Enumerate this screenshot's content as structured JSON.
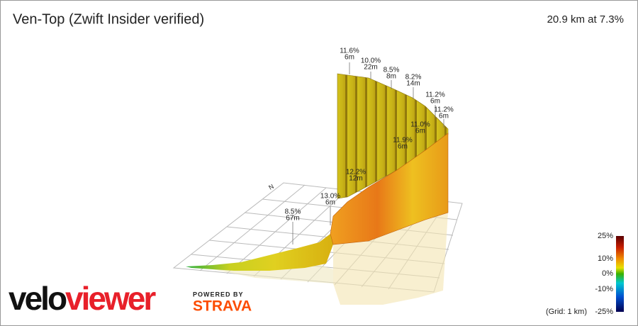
{
  "header": {
    "title": "Ven-Top (Zwift Insider verified)",
    "summary": "20.9 km at 7.3%"
  },
  "annotations": [
    {
      "gradient": "11.6%",
      "length": "6m"
    },
    {
      "gradient": "10.0%",
      "length": "22m"
    },
    {
      "gradient": "8.5%",
      "length": "8m"
    },
    {
      "gradient": "8.2%",
      "length": "14m"
    },
    {
      "gradient": "11.2%",
      "length": "6m"
    },
    {
      "gradient": "11.2%",
      "length": "6m"
    },
    {
      "gradient": "11.0%",
      "length": "6m"
    },
    {
      "gradient": "11.9%",
      "length": "6m"
    },
    {
      "gradient": "12.2%",
      "length": "12m"
    },
    {
      "gradient": "13.0%",
      "length": "6m"
    },
    {
      "gradient": "8.5%",
      "length": "67m"
    }
  ],
  "compass": "N",
  "color_scale": {
    "labels": [
      "25%",
      "10%",
      "0%",
      "-10%",
      "-25%"
    ],
    "note": "(Grid: 1 km)"
  },
  "footer": {
    "logo_first": "velo",
    "logo_second": "viewer",
    "powered_by": "POWERED BY",
    "brand": "STRAVA"
  }
}
